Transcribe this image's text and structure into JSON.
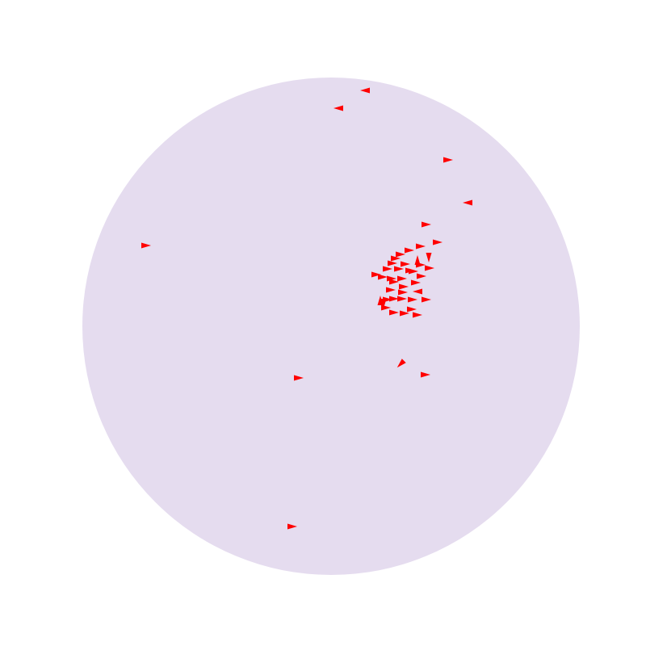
{
  "arena": {
    "shape": "circle",
    "fill_color": "#e5dcef",
    "background_color": "#ffffff"
  },
  "agents": {
    "icon": "arrowhead-icon",
    "color": "#ff0000",
    "count": 60
  }
}
